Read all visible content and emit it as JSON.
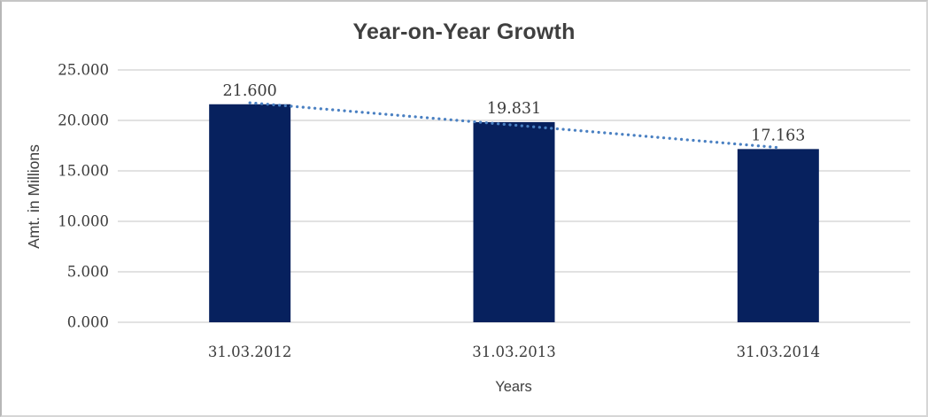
{
  "chart_data": {
    "type": "bar",
    "title": "Year-on-Year Growth",
    "xlabel": "Years",
    "ylabel": "Amt. in Millions",
    "categories": [
      "31.03.2012",
      "31.03.2013",
      "31.03.2014"
    ],
    "series": [
      {
        "name": "Amt. in Millions",
        "values": [
          21600,
          19831,
          17163
        ],
        "value_labels": [
          "21.600",
          "19.831",
          "17.163"
        ]
      }
    ],
    "ylim": [
      0,
      25000
    ],
    "y_ticks": [
      {
        "value": 0,
        "label": "0.000"
      },
      {
        "value": 5000,
        "label": "5.000"
      },
      {
        "value": 10000,
        "label": "10.000"
      },
      {
        "value": 15000,
        "label": "15.000"
      },
      {
        "value": 20000,
        "label": "20.000"
      },
      {
        "value": 25000,
        "label": "25.000"
      }
    ],
    "grid": true,
    "legend": false,
    "trendline": {
      "type": "linear",
      "style": "dotted"
    },
    "colors": {
      "bar": "#07215e",
      "trendline": "#4a80c2",
      "gridline": "#d9d9d9",
      "text": "#404040",
      "title": "#3f3f3f",
      "background": "#ffffff"
    }
  }
}
